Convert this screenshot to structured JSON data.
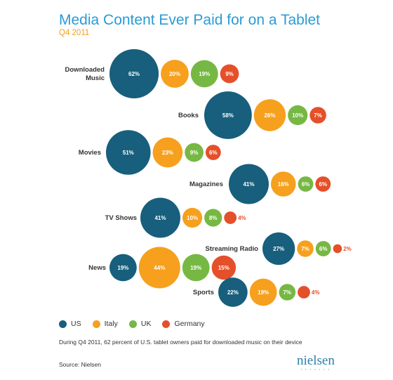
{
  "title": "Media Content Ever Paid for on a Tablet",
  "subtitle": "Q4 2011",
  "caption": "During Q4 2011, 62 percent of U.S. tablet owners paid for downloaded music on their device",
  "source": "Source: Nielsen",
  "logo": {
    "word": "nielsen",
    "dots": "• • • • • • •"
  },
  "colors": {
    "US": "#175f7c",
    "Italy": "#f6a01e",
    "UK": "#76b843",
    "Germany": "#e4502a"
  },
  "chart_data": {
    "type": "bubble",
    "title": "Media Content Ever Paid for on a Tablet",
    "subtitle": "Q4 2011",
    "series": [
      "US",
      "Italy",
      "UK",
      "Germany"
    ],
    "legend_position": "bottom-left",
    "categories": [
      {
        "name": "Downloaded Music",
        "values": {
          "US": 62,
          "Italy": 20,
          "UK": 19,
          "Germany": 9
        }
      },
      {
        "name": "Books",
        "values": {
          "US": 58,
          "Italy": 26,
          "UK": 10,
          "Germany": 7
        }
      },
      {
        "name": "Movies",
        "values": {
          "US": 51,
          "Italy": 23,
          "UK": 9,
          "Germany": 6
        }
      },
      {
        "name": "Magazines",
        "values": {
          "US": 41,
          "Italy": 16,
          "UK": 6,
          "Germany": 6
        }
      },
      {
        "name": "TV Shows",
        "values": {
          "US": 41,
          "Italy": 10,
          "UK": 8,
          "Germany": 4
        }
      },
      {
        "name": "Streaming Radio",
        "values": {
          "US": 27,
          "Italy": 7,
          "UK": 6,
          "Germany": 2
        }
      },
      {
        "name": "News",
        "values": {
          "US": 19,
          "Italy": 44,
          "UK": 19,
          "Germany": 15
        }
      },
      {
        "name": "Sports",
        "values": {
          "US": 22,
          "Italy": 19,
          "UK": 7,
          "Germany": 4
        }
      }
    ]
  }
}
